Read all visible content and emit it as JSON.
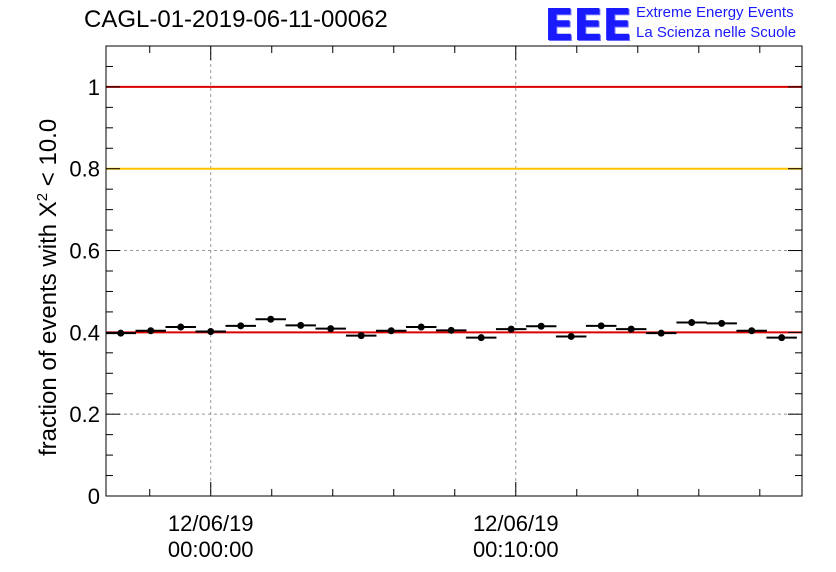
{
  "header": {
    "title": "CAGL-01-2019-06-11-00062",
    "logo_text": "EEE",
    "logo_line1": "Extreme Energy Events",
    "logo_line2": "La Scienza nelle Scuole"
  },
  "colors": {
    "ref_red": "#dd0000",
    "ref_yellow": "#ffc400",
    "logo_blue": "#1a1aff"
  },
  "chart_data": {
    "type": "scatter",
    "title": "CAGL-01-2019-06-11-00062",
    "ylabel_prefix": "fraction of events with X",
    "ylabel_sup": "2",
    "ylabel_suffix": " < 10.0",
    "ylim": [
      0,
      1.1
    ],
    "y_ticks": [
      {
        "value": 0,
        "label": "0"
      },
      {
        "value": 0.2,
        "label": "0.2"
      },
      {
        "value": 0.4,
        "label": "0.4"
      },
      {
        "value": 0.6,
        "label": "0.6"
      },
      {
        "value": 0.8,
        "label": "0.8"
      },
      {
        "value": 1,
        "label": "1"
      }
    ],
    "x_range_seconds": [
      -206,
      1163
    ],
    "x_ticks": [
      {
        "t": 0,
        "label_date": "12/06/19",
        "label_time": "00:00:00"
      },
      {
        "t": 600,
        "label_date": "12/06/19",
        "label_time": "00:10:00"
      }
    ],
    "grid": true,
    "reference_lines": [
      {
        "y": 1.0,
        "color": "red"
      },
      {
        "y": 0.8,
        "color": "yellow"
      },
      {
        "y": 0.4,
        "color": "red"
      }
    ],
    "bin_halfwidth_seconds": 30,
    "points": [
      {
        "t": -177,
        "y": 0.398
      },
      {
        "t": -118,
        "y": 0.404
      },
      {
        "t": -59,
        "y": 0.413
      },
      {
        "t": 0,
        "y": 0.402
      },
      {
        "t": 59,
        "y": 0.416
      },
      {
        "t": 118,
        "y": 0.432
      },
      {
        "t": 177,
        "y": 0.417
      },
      {
        "t": 236,
        "y": 0.409
      },
      {
        "t": 296,
        "y": 0.392
      },
      {
        "t": 355,
        "y": 0.404
      },
      {
        "t": 414,
        "y": 0.413
      },
      {
        "t": 473,
        "y": 0.405
      },
      {
        "t": 532,
        "y": 0.387
      },
      {
        "t": 591,
        "y": 0.408
      },
      {
        "t": 650,
        "y": 0.415
      },
      {
        "t": 709,
        "y": 0.39
      },
      {
        "t": 768,
        "y": 0.416
      },
      {
        "t": 827,
        "y": 0.408
      },
      {
        "t": 886,
        "y": 0.398
      },
      {
        "t": 946,
        "y": 0.424
      },
      {
        "t": 1005,
        "y": 0.422
      },
      {
        "t": 1064,
        "y": 0.404
      },
      {
        "t": 1123,
        "y": 0.387
      }
    ]
  }
}
